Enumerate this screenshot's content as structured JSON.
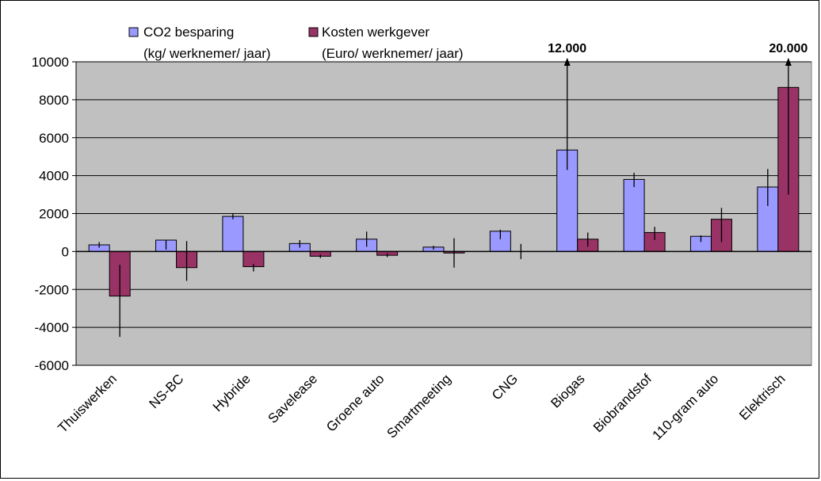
{
  "chart_data": {
    "type": "bar",
    "categories": [
      "Thuiswerken",
      "NS-BC",
      "Hybride",
      "Savelease",
      "Groene auto",
      "Smartmeeting",
      "CNG",
      "Biogas",
      "Biobrandstof",
      "110-gram auto",
      "Elektrisch"
    ],
    "series": [
      {
        "name_line1": "CO2 besparing",
        "name_line2": "(kg/ werknemer/ jaar)",
        "color": "#9999ff",
        "values": [
          350,
          600,
          1850,
          420,
          650,
          230,
          1070,
          5350,
          3800,
          800,
          3400
        ],
        "error_low": [
          200,
          100,
          1700,
          200,
          250,
          100,
          650,
          4300,
          3400,
          500,
          2400
        ],
        "error_high": [
          500,
          600,
          2000,
          600,
          1050,
          300,
          1150,
          12000,
          4150,
          850,
          4350
        ]
      },
      {
        "name_line1": "Kosten werkgever",
        "name_line2": "(Euro/ werknemer/ jaar)",
        "color": "#993366",
        "values": [
          -2350,
          -850,
          -800,
          -250,
          -200,
          -80,
          0,
          650,
          1000,
          1700,
          8650
        ],
        "error_low": [
          -4500,
          -1550,
          -1050,
          -350,
          -300,
          -850,
          -400,
          250,
          600,
          500,
          3000
        ],
        "error_high": [
          -700,
          550,
          -650,
          -150,
          -100,
          700,
          400,
          1000,
          1300,
          2300,
          20000
        ]
      }
    ],
    "callouts": [
      {
        "text": "12.000",
        "category_index": 7,
        "series_index": 0
      },
      {
        "text": "20.000",
        "category_index": 10,
        "series_index": 1
      }
    ],
    "ylim": [
      -6000,
      10000
    ],
    "yticks": [
      10000,
      8000,
      6000,
      4000,
      2000,
      0,
      -2000,
      -4000,
      -6000
    ],
    "grid": true,
    "plot_background": "#c0c0c0",
    "legend_position": "top-left"
  }
}
